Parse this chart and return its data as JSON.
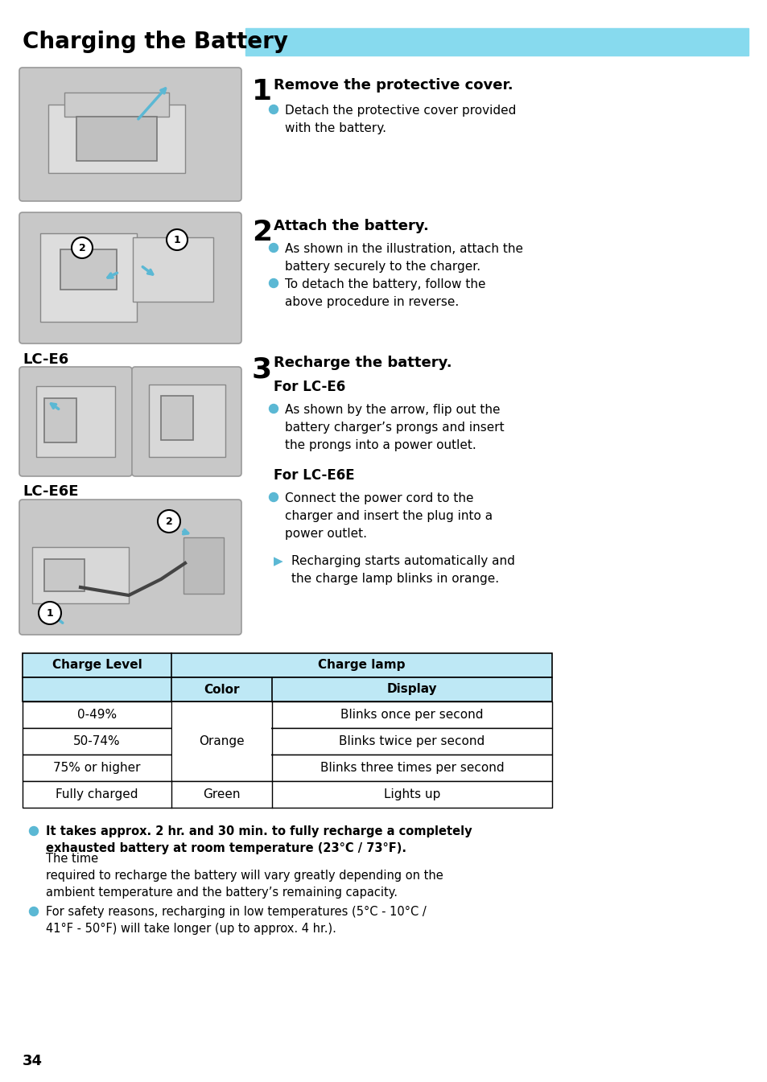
{
  "title": "Charging the Battery",
  "title_bar_color": "#87DAEE",
  "bg_color": "#ffffff",
  "step1_heading": "Remove the protective cover.",
  "step1_bullet": "Detach the protective cover provided\nwith the battery.",
  "step2_heading": "Attach the battery.",
  "step2_bullet1": "As shown in the illustration, attach the\nbattery securely to the charger.",
  "step2_bullet2": "To detach the battery, follow the\nabove procedure in reverse.",
  "step3_heading": "Recharge the battery.",
  "step3_sub1": "For LC-E6",
  "step3_bullet1": "As shown by the arrow, flip out the\nbattery charger’s prongs and insert\nthe prongs into a power outlet.",
  "step3_sub2": "For LC-E6E",
  "step3_bullet2": "Connect the power cord to the\ncharger and insert the plug into a\npower outlet.",
  "lce6_label": "LC-E6",
  "lce6e_label": "LC-E6E",
  "table_header1": "Charge Level",
  "table_header2": "Charge lamp",
  "table_col2": "Color",
  "table_col3": "Display",
  "table_rows": [
    [
      "0-49%",
      "",
      "Blinks once per second"
    ],
    [
      "50-74%",
      "Orange",
      "Blinks twice per second"
    ],
    [
      "75% or higher",
      "",
      "Blinks three times per second"
    ],
    [
      "Fully charged",
      "Green",
      "Lights up"
    ]
  ],
  "note1_bold": "It takes approx. 2 hr. and 30 min. to fully recharge a completely\nexhausted battery at room temperature (23°C / 73°F).",
  "note1_normal": "The time\nrequired to recharge the battery will vary greatly depending on the\nambient temperature and the battery’s remaining capacity.",
  "note2": "For safety reasons, recharging in low temperatures (5°C - 10°C /\n41°F - 50°F) will take longer (up to approx. 4 hr.).",
  "page_number": "34",
  "bullet_color": "#5BB8D4",
  "image_bg": "#C8C8C8",
  "table_header_bg": "#BEE8F5"
}
